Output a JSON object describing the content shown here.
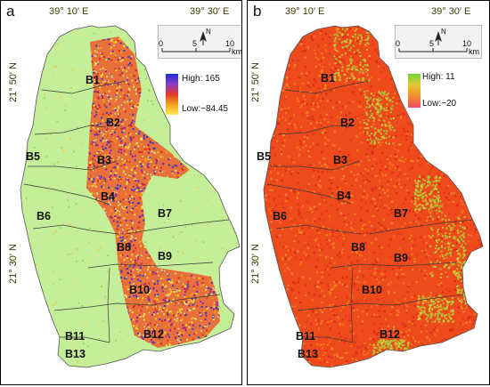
{
  "panels": [
    {
      "letter": "a",
      "top_lon_left": "39° 10′ E",
      "top_lon_right": "39° 30′ E",
      "lat_upper": "21° 50′ N",
      "lat_lower": "21° 30′ N",
      "legend": {
        "high": "High: 165",
        "low": "Low:−84.45"
      },
      "scale": {
        "t0": "0",
        "t5": "5",
        "t10": "10",
        "unit": "km",
        "north": "N"
      }
    },
    {
      "letter": "b",
      "top_lon_left": "39° 10′ E",
      "top_lon_right": "39° 30′ E",
      "lat_upper": "21° 50′ N",
      "lat_lower": "21° 30′ N",
      "legend": {
        "high": "High: 11",
        "low": "Low:−20"
      },
      "scale": {
        "t0": "0",
        "t5": "5",
        "t10": "10",
        "unit": "km",
        "north": "N"
      }
    }
  ],
  "basins": [
    "B1",
    "B2",
    "B3",
    "B4",
    "B5",
    "B6",
    "B7",
    "B8",
    "B9",
    "B10",
    "B11",
    "B12",
    "B13"
  ],
  "colors": {
    "a_background": "#c5ee98",
    "a_hot": [
      "#d82b1c",
      "#f0a11a",
      "#2a3fd0",
      "#8a1fb0",
      "#ffe24a"
    ],
    "b_background": "#ee4a1c",
    "b_variants": [
      "#f57c18",
      "#e0341a",
      "#d42a14",
      "#f08f2a"
    ],
    "b_green": "#9ed83a",
    "ramp_a": [
      "#1b2fd8",
      "#8a3cc4",
      "#e23a28",
      "#f3a21c",
      "#ffe957"
    ],
    "ramp_b": [
      "#6bd63b",
      "#e6c830",
      "#f28a2b",
      "#f04a6a"
    ]
  }
}
